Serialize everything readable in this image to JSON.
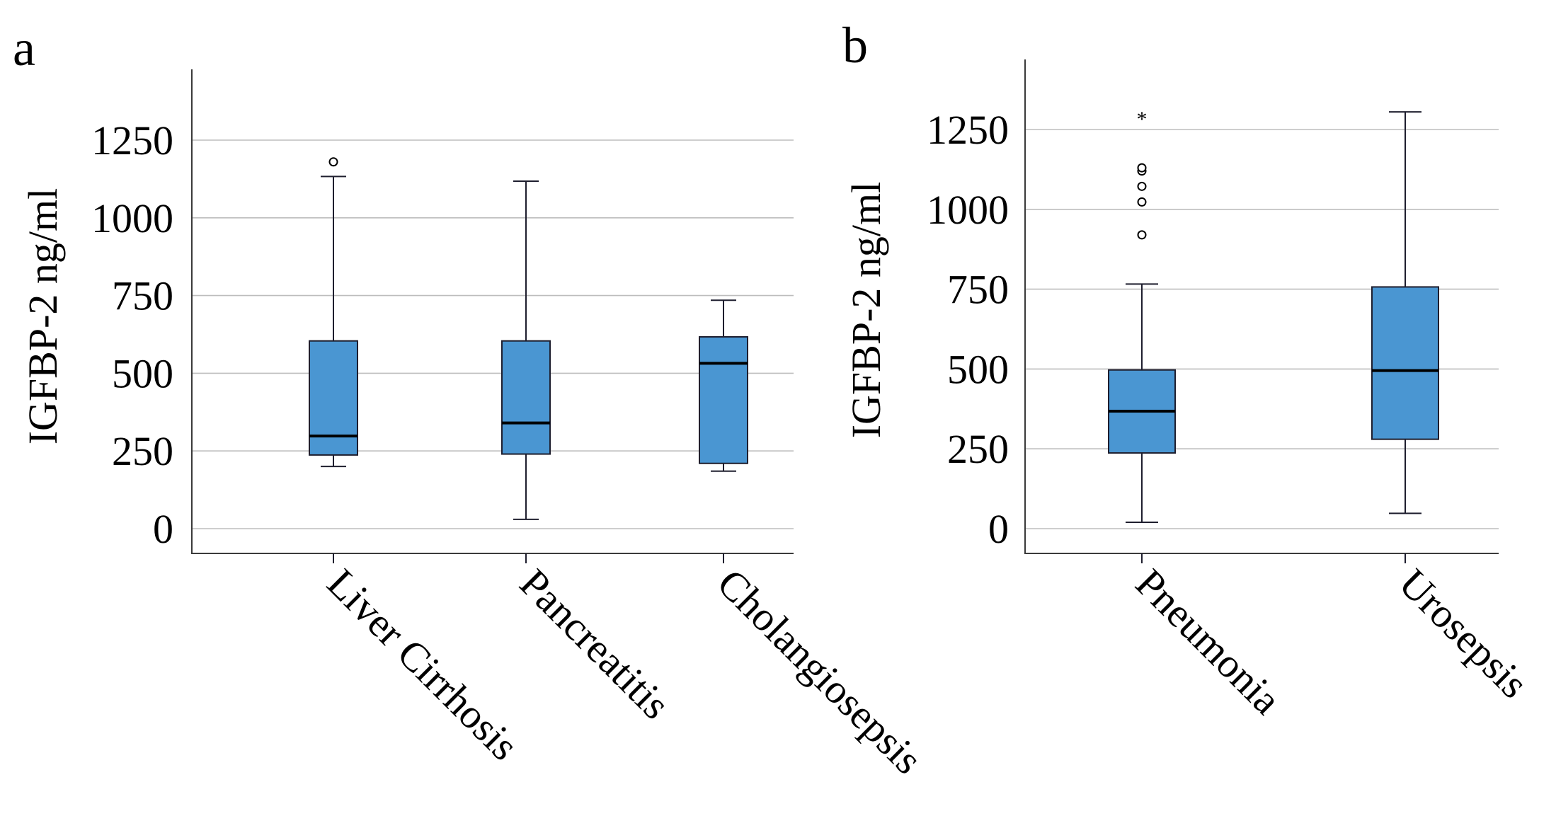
{
  "chart_data": [
    {
      "panel": "a",
      "type": "box",
      "ylabel": "IGFBP-2 ng/ml",
      "ylim": [
        -80,
        1480
      ],
      "yticks": [
        0,
        250,
        500,
        750,
        1000,
        1250
      ],
      "grid": true,
      "categories": [
        "Liver Cirrhosis",
        "Pancreatitis",
        "Cholangiosepsis"
      ],
      "boxes": [
        {
          "min": 200,
          "q1": 237,
          "median": 298,
          "q3": 604,
          "max": 1133,
          "outliers": [
            1180
          ],
          "extremes": []
        },
        {
          "min": 30,
          "q1": 240,
          "median": 340,
          "q3": 604,
          "max": 1118,
          "outliers": [],
          "extremes": []
        },
        {
          "min": 185,
          "q1": 210,
          "median": 532,
          "q3": 617,
          "max": 735,
          "outliers": [],
          "extremes": []
        }
      ]
    },
    {
      "panel": "b",
      "type": "box",
      "ylabel": "IGFBP-2 ng/ml",
      "ylim": [
        -80,
        1480
      ],
      "yticks": [
        0,
        250,
        500,
        750,
        1000,
        1250
      ],
      "grid": true,
      "categories": [
        "Pneumonia",
        "Urosepsis"
      ],
      "boxes": [
        {
          "min": 20,
          "q1": 237,
          "median": 368,
          "q3": 497,
          "max": 766,
          "outliers": [
            920,
            1023,
            1072,
            1120,
            1130
          ],
          "extremes": [
            1290
          ]
        },
        {
          "min": 48,
          "q1": 280,
          "median": 495,
          "q3": 757,
          "max": 1305,
          "outliers": [],
          "extremes": []
        }
      ]
    }
  ],
  "extreme_marker": "*"
}
